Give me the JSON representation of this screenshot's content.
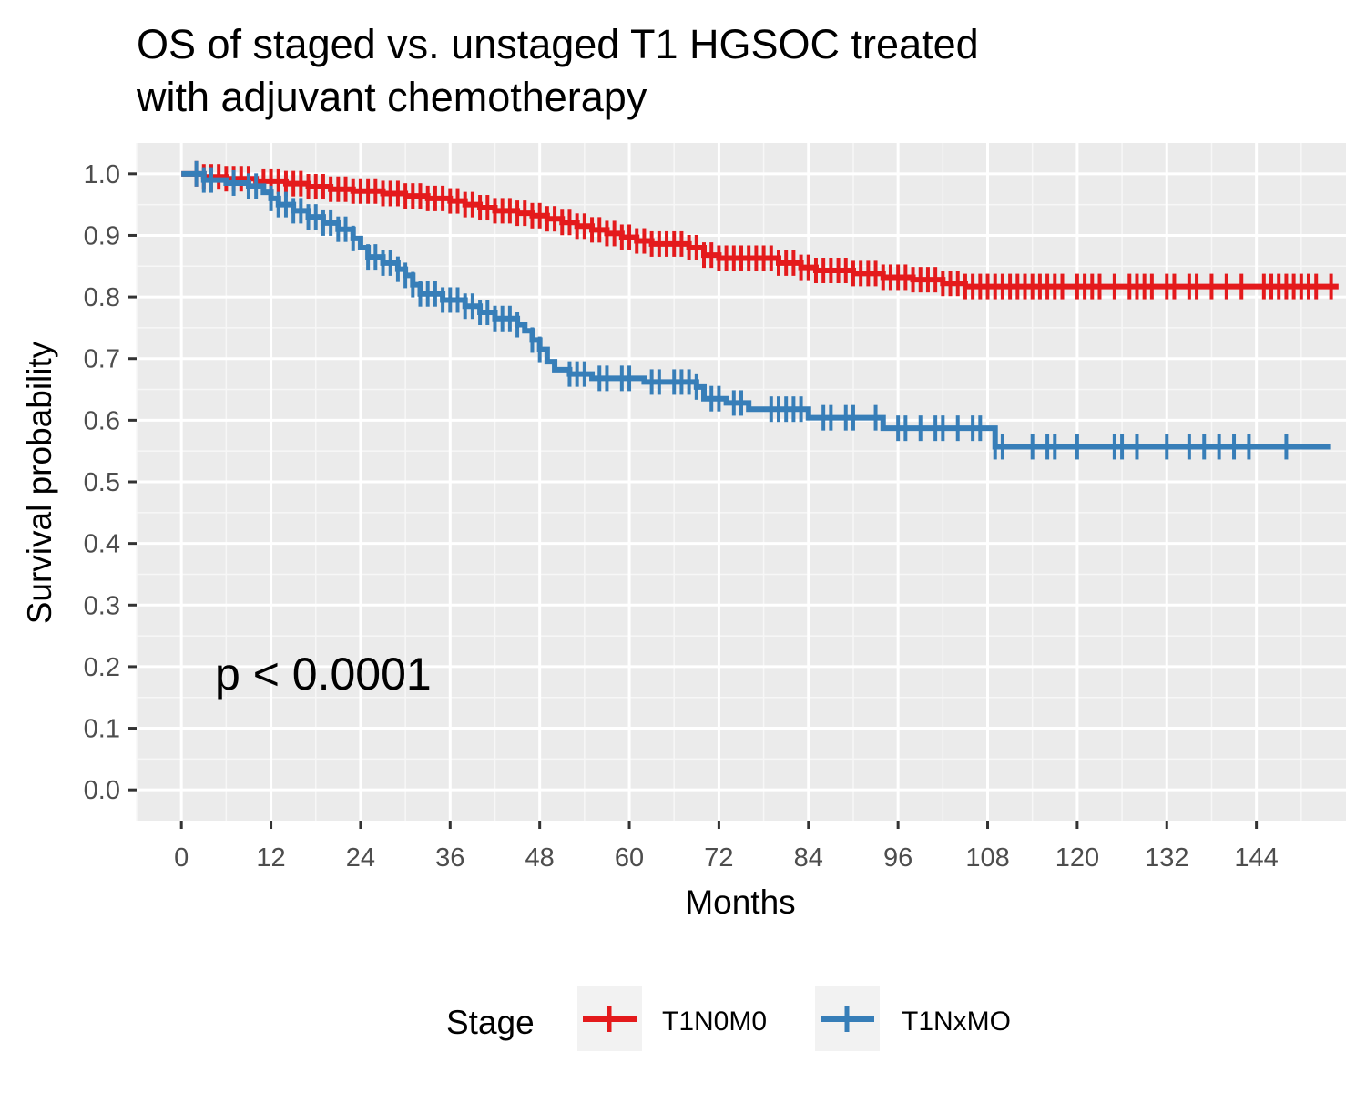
{
  "chart_data": {
    "type": "line",
    "subtype": "kaplan-meier",
    "title_lines": [
      "OS of staged vs. unstaged T1 HGSOC treated",
      "with adjuvant chemotherapy"
    ],
    "xlabel": "Months",
    "ylabel": "Survival probability",
    "xlim": [
      -6,
      156
    ],
    "ylim": [
      -0.05,
      1.05
    ],
    "xticks": [
      0,
      12,
      24,
      36,
      48,
      60,
      72,
      84,
      96,
      108,
      120,
      132,
      144
    ],
    "yticks": [
      0.0,
      0.1,
      0.2,
      0.3,
      0.4,
      0.5,
      0.6,
      0.7,
      0.8,
      0.9,
      1.0
    ],
    "ytick_labels": [
      "0.0",
      "0.1",
      "0.2",
      "0.3",
      "0.4",
      "0.5",
      "0.6",
      "0.7",
      "0.8",
      "0.9",
      "1.0"
    ],
    "grid": true,
    "annotation": {
      "text": "p < 0.0001",
      "x": 3,
      "y": 0.19
    },
    "legend": {
      "title": "Stage",
      "position": "bottom"
    },
    "series": [
      {
        "name": "T1N0M0",
        "color": "#E41A1C",
        "steps": [
          [
            0,
            1.0
          ],
          [
            3,
            0.995
          ],
          [
            6,
            0.992
          ],
          [
            10,
            0.988
          ],
          [
            14,
            0.984
          ],
          [
            17,
            0.979
          ],
          [
            20,
            0.975
          ],
          [
            23,
            0.972
          ],
          [
            27,
            0.968
          ],
          [
            30,
            0.964
          ],
          [
            33,
            0.96
          ],
          [
            36,
            0.956
          ],
          [
            38,
            0.95
          ],
          [
            40,
            0.945
          ],
          [
            42,
            0.94
          ],
          [
            45,
            0.936
          ],
          [
            47,
            0.932
          ],
          [
            49,
            0.927
          ],
          [
            51,
            0.921
          ],
          [
            53,
            0.915
          ],
          [
            55,
            0.909
          ],
          [
            57,
            0.903
          ],
          [
            59,
            0.897
          ],
          [
            61,
            0.891
          ],
          [
            63,
            0.886
          ],
          [
            68,
            0.88
          ],
          [
            70,
            0.868
          ],
          [
            72,
            0.863
          ],
          [
            80,
            0.855
          ],
          [
            83,
            0.848
          ],
          [
            85,
            0.843
          ],
          [
            90,
            0.838
          ],
          [
            94,
            0.832
          ],
          [
            98,
            0.828
          ],
          [
            102,
            0.822
          ],
          [
            105,
            0.817
          ],
          [
            155,
            0.817
          ]
        ],
        "censor_times": [
          2,
          3,
          4,
          5,
          6,
          7,
          8,
          9,
          11,
          12,
          13,
          14,
          15,
          16,
          17,
          18,
          19,
          20,
          21,
          22,
          23,
          24,
          25,
          26,
          27,
          28,
          29,
          30,
          31,
          32,
          33,
          34,
          35,
          36,
          37,
          38,
          39,
          40,
          41,
          42,
          43,
          44,
          45,
          46,
          47,
          48,
          49,
          50,
          51,
          52,
          53,
          54,
          55,
          56,
          57,
          58,
          59,
          60,
          61,
          62,
          63,
          64,
          65,
          66,
          67,
          68,
          69,
          70,
          71,
          72,
          73,
          74,
          75,
          76,
          77,
          78,
          79,
          80,
          81,
          82,
          83,
          84,
          85,
          86,
          87,
          88,
          89,
          90,
          91,
          92,
          93,
          94,
          95,
          96,
          97,
          98,
          99,
          100,
          101,
          102,
          103,
          104,
          105,
          106,
          107,
          108,
          109,
          110,
          111,
          112,
          113,
          114,
          115,
          116,
          117,
          118,
          120,
          121,
          122,
          123,
          125,
          127,
          128,
          129,
          130,
          132,
          133,
          135,
          136,
          138,
          140,
          142,
          145,
          146,
          147,
          148,
          149,
          150,
          151,
          152,
          154
        ]
      },
      {
        "name": "T1NxMO",
        "color": "#377EB8",
        "steps": [
          [
            0,
            1.0
          ],
          [
            3,
            0.99
          ],
          [
            6,
            0.985
          ],
          [
            9,
            0.98
          ],
          [
            11,
            0.97
          ],
          [
            12,
            0.96
          ],
          [
            13,
            0.95
          ],
          [
            15,
            0.94
          ],
          [
            17,
            0.93
          ],
          [
            19,
            0.92
          ],
          [
            21,
            0.91
          ],
          [
            23,
            0.895
          ],
          [
            24,
            0.88
          ],
          [
            25,
            0.865
          ],
          [
            27,
            0.855
          ],
          [
            29,
            0.845
          ],
          [
            30,
            0.835
          ],
          [
            31,
            0.82
          ],
          [
            32,
            0.805
          ],
          [
            35,
            0.795
          ],
          [
            38,
            0.785
          ],
          [
            40,
            0.775
          ],
          [
            42,
            0.765
          ],
          [
            45,
            0.755
          ],
          [
            46,
            0.745
          ],
          [
            47,
            0.73
          ],
          [
            48,
            0.715
          ],
          [
            49,
            0.695
          ],
          [
            50,
            0.682
          ],
          [
            52,
            0.675
          ],
          [
            55,
            0.668
          ],
          [
            62,
            0.662
          ],
          [
            69,
            0.654
          ],
          [
            70,
            0.635
          ],
          [
            73,
            0.628
          ],
          [
            76,
            0.618
          ],
          [
            84,
            0.604
          ],
          [
            94,
            0.587
          ],
          [
            109,
            0.557
          ],
          [
            154,
            0.557
          ]
        ],
        "censor_times": [
          2,
          3,
          4,
          7,
          9,
          10,
          12,
          13,
          14,
          15,
          16,
          17,
          18,
          19,
          20,
          21,
          22,
          23,
          25,
          26,
          27,
          28,
          29,
          30,
          31,
          32,
          33,
          34,
          35,
          36,
          37,
          38,
          39,
          40,
          41,
          42,
          43,
          44,
          45,
          47,
          48,
          52,
          53,
          54,
          56,
          57,
          59,
          60,
          63,
          64,
          66,
          67,
          68,
          69,
          71,
          72,
          74,
          75,
          79,
          80,
          81,
          82,
          83,
          86,
          87,
          89,
          90,
          93,
          96,
          97,
          99,
          101,
          102,
          104,
          106,
          107,
          109,
          110,
          114,
          116,
          117,
          120,
          125,
          126,
          128,
          132,
          135,
          137,
          139,
          141,
          143,
          148
        ]
      }
    ]
  }
}
